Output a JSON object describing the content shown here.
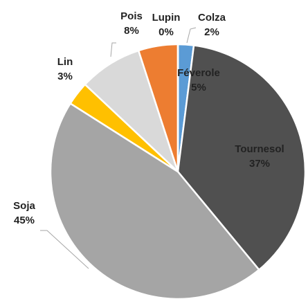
{
  "chart_data": {
    "type": "pie",
    "categories": [
      "Colza",
      "Tournesol",
      "Soja",
      "Lin",
      "Pois",
      "Féverole",
      "Lupin"
    ],
    "values": [
      2,
      37,
      45,
      3,
      8,
      5,
      0
    ],
    "value_labels": [
      "2%",
      "37%",
      "45%",
      "3%",
      "8%",
      "5%",
      "0%"
    ],
    "colors": [
      "#5b9bd5",
      "#505050",
      "#a5a5a5",
      "#ffc000",
      "#d9d9d9",
      "#ed7d31",
      "#ffffff"
    ]
  }
}
